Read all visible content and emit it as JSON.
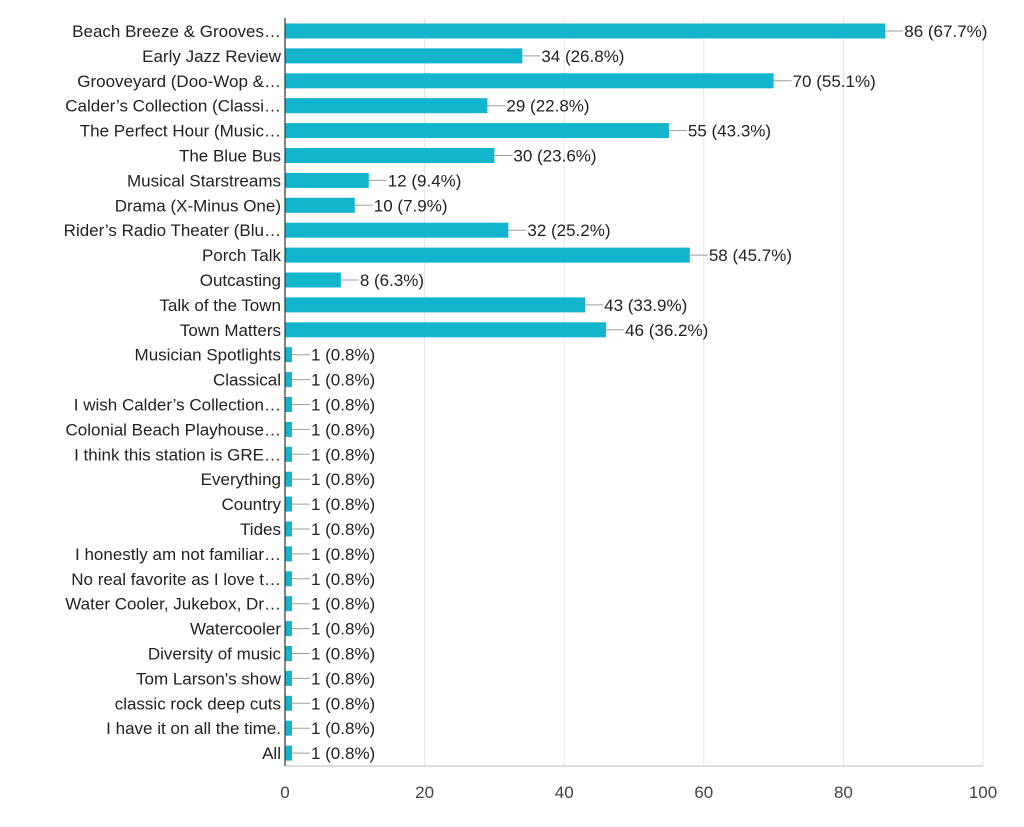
{
  "chart_data": {
    "type": "bar",
    "orientation": "horizontal",
    "categories": [
      "Beach Breeze & Grooves…",
      "Early Jazz Review",
      "Grooveyard (Doo-Wop &…",
      "Calder’s Collection (Classi…",
      "The Perfect Hour (Music…",
      "The Blue Bus",
      "Musical Starstreams",
      "Drama (X-Minus One)",
      "Rider’s Radio Theater (Blu…",
      "Porch Talk",
      "Outcasting",
      "Talk of the Town",
      "Town Matters",
      "Musician Spotlights",
      "Classical",
      "I wish Calder’s Collection…",
      "Colonial Beach Playhouse…",
      "I think this station is GRE…",
      "Everything",
      "Country",
      "Tides",
      "I honestly am not familiar…",
      "No real favorite as I love t…",
      "Water Cooler, Jukebox, Dr…",
      "Watercooler",
      "Diversity of music",
      "Tom Larson's show",
      "classic rock deep cuts",
      "I have it on all the time.",
      "All"
    ],
    "values": [
      86,
      34,
      70,
      29,
      55,
      30,
      12,
      10,
      32,
      58,
      8,
      43,
      46,
      1,
      1,
      1,
      1,
      1,
      1,
      1,
      1,
      1,
      1,
      1,
      1,
      1,
      1,
      1,
      1,
      1
    ],
    "data_labels": [
      "86 (67.7%)",
      "34 (26.8%)",
      "70 (55.1%)",
      "29 (22.8%)",
      "55 (43.3%)",
      "30 (23.6%)",
      "12 (9.4%)",
      "10 (7.9%)",
      "32 (25.2%)",
      "58 (45.7%)",
      "8 (6.3%)",
      "43 (33.9%)",
      "46 (36.2%)",
      "1 (0.8%)",
      "1 (0.8%)",
      "1 (0.8%)",
      "1 (0.8%)",
      "1 (0.8%)",
      "1 (0.8%)",
      "1 (0.8%)",
      "1 (0.8%)",
      "1 (0.8%)",
      "1 (0.8%)",
      "1 (0.8%)",
      "1 (0.8%)",
      "1 (0.8%)",
      "1 (0.8%)",
      "1 (0.8%)",
      "1 (0.8%)",
      "1 (0.8%)"
    ],
    "x_ticks": [
      0,
      20,
      40,
      60,
      80,
      100
    ],
    "x_tick_labels": [
      "0",
      "20",
      "40",
      "60",
      "80",
      "100"
    ],
    "xlim": [
      0,
      100
    ],
    "grid": true,
    "legend": "none",
    "title": "",
    "xlabel": "",
    "ylabel": "",
    "colors": {
      "bar": "#12B5CB",
      "grid": "#e6e6e6",
      "axis": "#333333",
      "text": "#222222",
      "leader": "#9e9e9e"
    }
  }
}
